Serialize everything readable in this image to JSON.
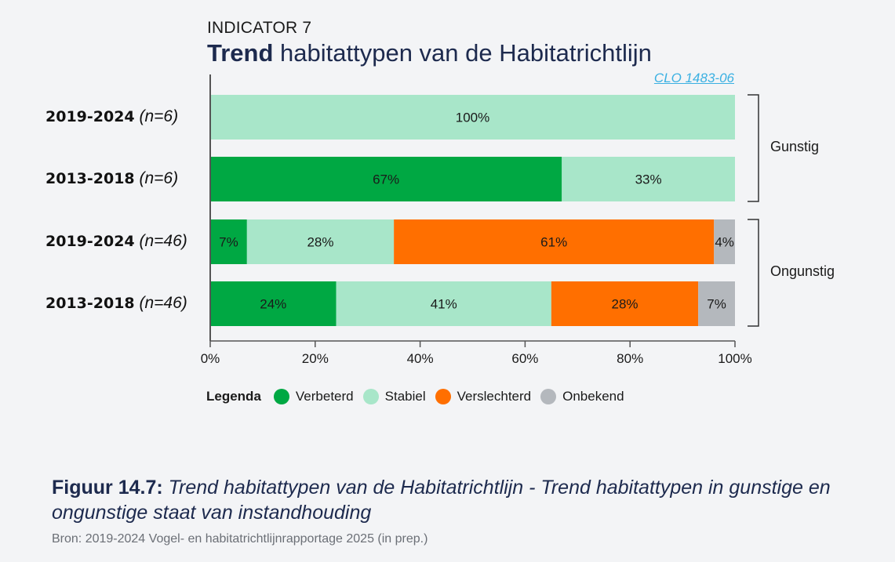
{
  "header": {
    "indicator": "INDICATOR 7",
    "title_bold": "Trend",
    "title_rest": " habitattypen van de Habitatrichtlijn",
    "clo_link": "CLO 1483-06"
  },
  "chart_data": {
    "type": "bar",
    "orientation": "horizontal",
    "stacked": true,
    "title": "Trend habitattypen van de Habitatrichtlijn",
    "xlabel": "",
    "ylabel": "",
    "xlim": [
      0,
      100
    ],
    "x_ticks": [
      "0%",
      "20%",
      "40%",
      "60%",
      "80%",
      "100%"
    ],
    "grid": false,
    "legend_position": "bottom",
    "categories": [
      {
        "period": "2019-2024",
        "n": "(n=6)",
        "group": "Gunstig"
      },
      {
        "period": "2013-2018",
        "n": "(n=6)",
        "group": "Gunstig"
      },
      {
        "period": "2019-2024",
        "n": "(n=46)",
        "group": "Ongunstig"
      },
      {
        "period": "2013-2018",
        "n": "(n=46)",
        "group": "Ongunstig"
      }
    ],
    "series": [
      {
        "name": "Verbeterd",
        "color": "#00a843",
        "values": [
          0,
          67,
          7,
          24
        ]
      },
      {
        "name": "Stabiel",
        "color": "#a8e6c9",
        "values": [
          100,
          33,
          28,
          41
        ]
      },
      {
        "name": "Verslechterd",
        "color": "#ff6f00",
        "values": [
          0,
          0,
          61,
          28
        ]
      },
      {
        "name": "Onbekend",
        "color": "#b4b8bd",
        "values": [
          0,
          0,
          4,
          7
        ]
      }
    ],
    "groups": [
      {
        "label": "Gunstig",
        "rows": [
          0,
          1
        ]
      },
      {
        "label": "Ongunstig",
        "rows": [
          2,
          3
        ]
      }
    ]
  },
  "legend": {
    "title": "Legenda"
  },
  "caption": {
    "label": "Figuur 14.7:",
    "text": " Trend habitattypen van de Habitatrichtlijn - Trend habitattypen in gunstige en ongunstige staat van instandhouding",
    "source": "Bron: 2019-2024 Vogel- en habitatrichtlijnrapportage 2025 (in prep.)"
  }
}
